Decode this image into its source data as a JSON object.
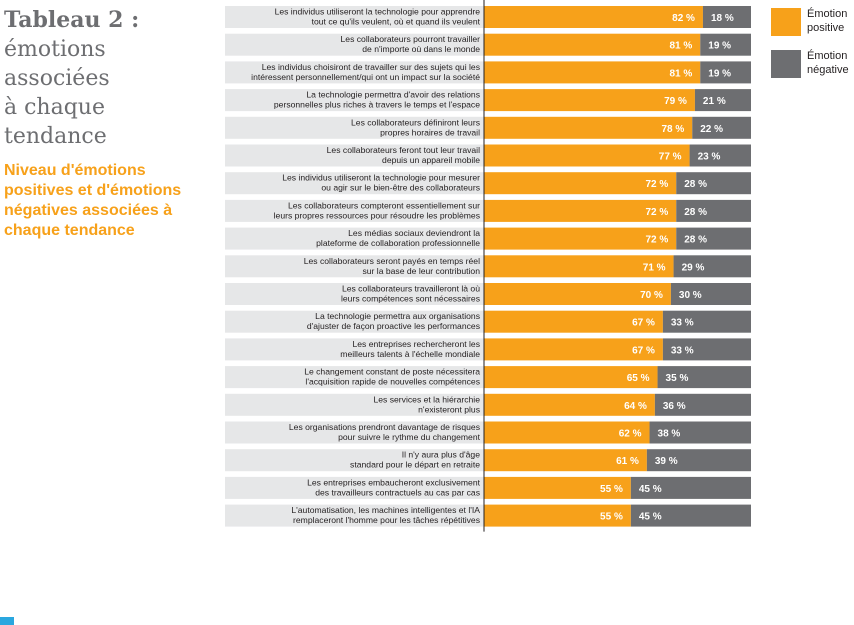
{
  "heading": {
    "title_bold": "Tableau 2 :",
    "title_lines": [
      "émotions",
      "associées",
      "à chaque",
      "tendance"
    ],
    "subtitle_lines": [
      "Niveau d'émotions",
      "positives et d'émotions",
      "négatives associées à",
      "chaque tendance"
    ]
  },
  "legend": {
    "items": [
      {
        "label": "Émotion\npositive",
        "color": "#f7a11a"
      },
      {
        "label": "Émotion\nnégative",
        "color": "#6d6e71"
      }
    ]
  },
  "colors": {
    "positive": "#f7a11a",
    "negative": "#6d6e71",
    "row_bg": "#e6e7e8",
    "label_text": "#231f20"
  },
  "chart_data": {
    "type": "bar",
    "orientation": "horizontal",
    "stacked": true,
    "categories": [
      [
        "Les individus utiliseront la technologie pour apprendre",
        "tout ce qu'ils veulent, où et quand ils veulent"
      ],
      [
        "Les collaborateurs pourront travailler",
        "de n'importe où dans le monde"
      ],
      [
        "Les individus choisiront de travailler sur des sujets qui les",
        "intéressent personnellement/qui ont un impact sur la société"
      ],
      [
        "La technologie permettra d'avoir des relations",
        "personnelles plus riches à travers le temps et l'espace"
      ],
      [
        "Les collaborateurs définiront leurs",
        "propres horaires de travail"
      ],
      [
        "Les collaborateurs feront tout leur travail",
        "depuis un appareil mobile"
      ],
      [
        "Les individus utiliseront la technologie pour mesurer",
        "ou agir sur le bien-être des collaborateurs"
      ],
      [
        "Les collaborateurs compteront essentiellement sur",
        "leurs propres ressources pour résoudre les problèmes"
      ],
      [
        "Les médias sociaux deviendront la",
        "plateforme de collaboration professionnelle"
      ],
      [
        "Les collaborateurs seront payés en temps réel",
        "sur la base de leur contribution"
      ],
      [
        "Les collaborateurs travailleront là où",
        "leurs compétences sont nécessaires"
      ],
      [
        "La technologie permettra aux organisations",
        "d'ajuster de façon proactive les performances"
      ],
      [
        "Les entreprises rechercheront les",
        "meilleurs talents à l'échelle mondiale"
      ],
      [
        "Le changement constant de poste nécessitera",
        "l'acquisition rapide de nouvelles compétences"
      ],
      [
        "Les services et la hiérarchie",
        "n'existeront plus"
      ],
      [
        "Les organisations prendront davantage de risques",
        "pour suivre le rythme du changement"
      ],
      [
        "Il n'y aura plus d'âge",
        "standard pour le départ en retraite"
      ],
      [
        "Les entreprises embaucheront exclusivement",
        "des travailleurs contractuels au cas par cas"
      ],
      [
        "L'automatisation, les machines intelligentes et l'IA",
        "remplaceront l'homme pour les tâches répétitives"
      ]
    ],
    "series": [
      {
        "name": "Émotion positive",
        "values": [
          82,
          81,
          81,
          79,
          78,
          77,
          72,
          72,
          72,
          71,
          70,
          67,
          67,
          65,
          64,
          62,
          61,
          55,
          55
        ]
      },
      {
        "name": "Émotion négative",
        "values": [
          18,
          19,
          19,
          21,
          22,
          23,
          28,
          28,
          28,
          29,
          30,
          33,
          33,
          35,
          36,
          38,
          39,
          45,
          45
        ]
      }
    ],
    "value_format": "{v} %",
    "xlim": [
      0,
      100
    ],
    "title": "Tableau 2 : émotions associées à chaque tendance",
    "subtitle": "Niveau d'émotions positives et d'émotions négatives associées à chaque tendance",
    "legend_position": "top-right",
    "grid": false
  }
}
